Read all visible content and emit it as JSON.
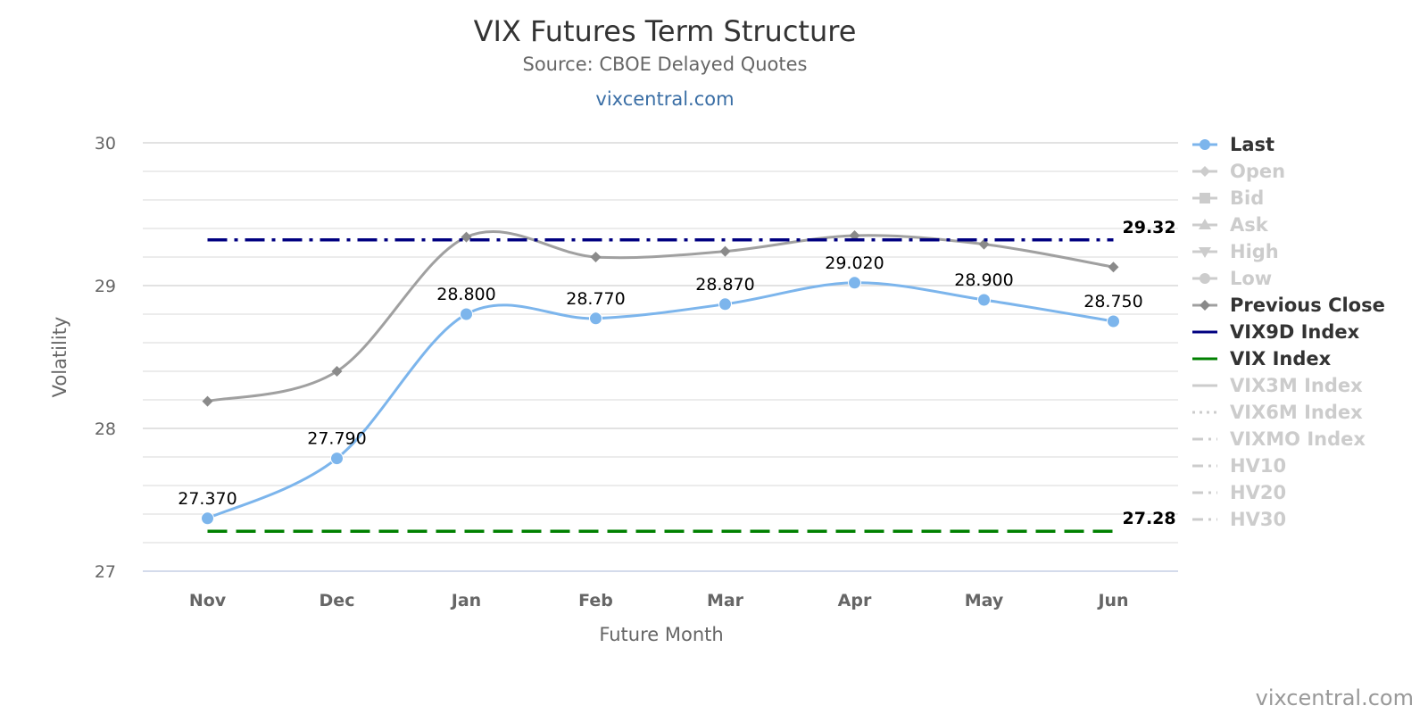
{
  "chart_data": {
    "type": "line",
    "title": "VIX Futures Term Structure",
    "subtitle": "Source: CBOE Delayed Quotes",
    "subtitle_link": "vixcentral.com",
    "xlabel": "Future Month",
    "ylabel": "Volatility",
    "credit": "vixcentral.com",
    "categories": [
      "Nov",
      "Dec",
      "Jan",
      "Feb",
      "Mar",
      "Apr",
      "May",
      "Jun"
    ],
    "ylim": [
      27,
      30
    ],
    "yticks": [
      "27",
      "28",
      "29",
      "30"
    ],
    "grid": true,
    "legend_position": "right",
    "series": [
      {
        "name": "Last",
        "color": "#7cb5ec",
        "marker": "circle",
        "values": [
          27.37,
          27.79,
          28.8,
          28.77,
          28.87,
          29.02,
          28.9,
          28.75
        ],
        "data_labels": [
          "27.370",
          "27.790",
          "28.800",
          "28.770",
          "28.870",
          "29.020",
          "28.900",
          "28.750"
        ]
      },
      {
        "name": "Previous Close",
        "color": "#a0a0a0",
        "marker": "diamond",
        "values": [
          28.19,
          28.4,
          29.34,
          29.2,
          29.24,
          29.35,
          29.29,
          29.13
        ]
      },
      {
        "name": "VIX9D Index",
        "color": "#000080",
        "dash": "dashdot",
        "value": 29.32,
        "end_label": "29.32"
      },
      {
        "name": "VIX Index",
        "color": "#008000",
        "dash": "dash",
        "value": 27.28,
        "end_label": "27.28"
      }
    ],
    "legend": [
      {
        "name": "Last",
        "active": true,
        "symbol": "circle",
        "color": "#7cb5ec"
      },
      {
        "name": "Open",
        "active": false,
        "symbol": "diamond"
      },
      {
        "name": "Bid",
        "active": false,
        "symbol": "square"
      },
      {
        "name": "Ask",
        "active": false,
        "symbol": "triangle"
      },
      {
        "name": "High",
        "active": false,
        "symbol": "triangle-down"
      },
      {
        "name": "Low",
        "active": false,
        "symbol": "circle"
      },
      {
        "name": "Previous Close",
        "active": true,
        "symbol": "diamond",
        "color": "#a0a0a0"
      },
      {
        "name": "VIX9D Index",
        "active": true,
        "symbol": "line",
        "color": "#000080"
      },
      {
        "name": "VIX Index",
        "active": true,
        "symbol": "line",
        "color": "#008000"
      },
      {
        "name": "VIX3M Index",
        "active": false,
        "symbol": "line"
      },
      {
        "name": "VIX6M Index",
        "active": false,
        "symbol": "dot-line"
      },
      {
        "name": "VIXMO Index",
        "active": false,
        "symbol": "dashdot-line"
      },
      {
        "name": "HV10",
        "active": false,
        "symbol": "dashdot-line"
      },
      {
        "name": "HV20",
        "active": false,
        "symbol": "dashdot-line"
      },
      {
        "name": "HV30",
        "active": false,
        "symbol": "dashdot-line"
      }
    ]
  }
}
